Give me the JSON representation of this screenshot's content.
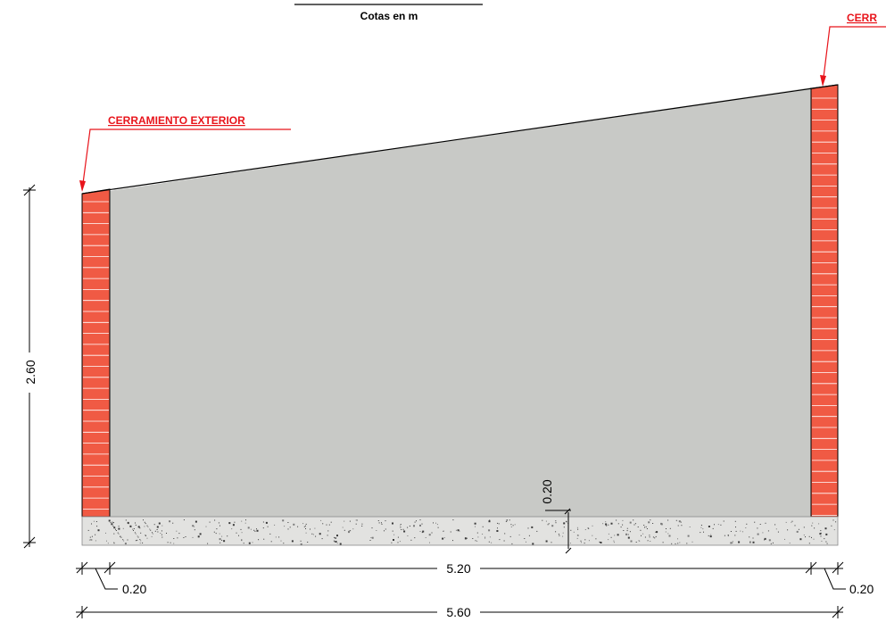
{
  "header": {
    "units_note": "Cotas en m"
  },
  "callouts": {
    "left_label": "CERRAMIENTO EXTERIOR",
    "right_label": "CERR"
  },
  "dimensions": {
    "height": "2.60",
    "slab_thickness": "0.20",
    "interior_width": "5.20",
    "left_wall_thickness": "0.20",
    "right_wall_thickness": "0.20",
    "total_width": "5.60"
  },
  "colors": {
    "brick": "#f05a44",
    "brick_joint": "#ffffff",
    "interior_fill": "#c8c9c6",
    "slab_fill": "#e2e2e0",
    "callout": "#e8141b",
    "line": "#000000"
  }
}
